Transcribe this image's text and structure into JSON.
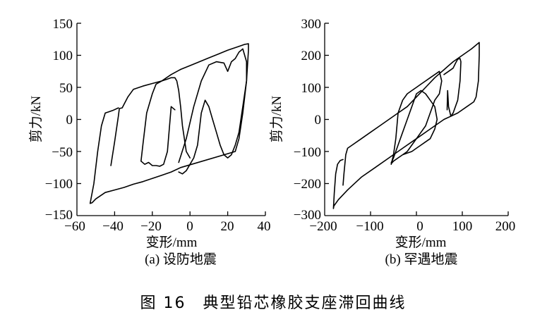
{
  "figure": {
    "caption": "图 16　典型铅芯橡胶支座滞回曲线"
  },
  "chart_data": [
    {
      "type": "line",
      "panel": "a",
      "title": "(a) 设防地震",
      "xlabel": "变形/mm",
      "ylabel": "剪力/kN",
      "xlim": [
        -60,
        40
      ],
      "ylim": [
        -150,
        150
      ],
      "xticks": [
        -60,
        -40,
        -20,
        0,
        20,
        40
      ],
      "xtick_labels": [
        "−60",
        "−40",
        "−20",
        "0",
        "20",
        "40"
      ],
      "yticks": [
        150,
        100,
        50,
        0,
        -50,
        -100,
        -150
      ],
      "ytick_labels": [
        "150",
        "100",
        "50",
        "0",
        "−50",
        "−100",
        "−150"
      ],
      "grid": false,
      "legend": null,
      "description": "Hysteresis loops of lead-rubber bearing under design-basis earthquake; max shear ≈ 118 kN at ≈ 31 mm, min ≈ −132 kN at ≈ −53 mm",
      "series": [
        {
          "name": "hysteresis",
          "x": [
            -42,
            -40,
            -38,
            -37.5,
            -36,
            -33,
            -30,
            -25,
            -20,
            -15,
            -10,
            -5,
            0,
            5,
            10,
            15,
            20,
            25,
            29,
            31,
            31,
            30,
            28,
            26,
            24,
            -5,
            -10,
            -15,
            -20,
            -25,
            -30,
            -35,
            -40,
            -45,
            -50,
            -52,
            -53,
            -51,
            -49,
            -47,
            -45,
            -43,
            -41,
            -38
          ],
          "y": [
            -72,
            -35,
            5,
            17,
            18,
            35,
            47,
            52,
            56,
            60,
            70,
            78,
            84,
            90,
            96,
            102,
            108,
            113,
            117,
            118,
            108,
            60,
            10,
            -30,
            -50,
            -75,
            -82,
            -87,
            -92,
            -97,
            -101,
            -106,
            -110,
            -114,
            -124,
            -130,
            -131,
            -100,
            -50,
            -10,
            10,
            12,
            14,
            18
          ]
        },
        {
          "name": "inner-loop-1",
          "x": [
            -26,
            -25,
            -23,
            -20,
            -18,
            -15,
            -12,
            -10,
            -8,
            -7,
            -6,
            -5,
            -4,
            -3,
            -2,
            0
          ],
          "y": [
            -65,
            -40,
            10,
            40,
            55,
            60,
            63,
            65,
            65,
            60,
            45,
            20,
            -10,
            -30,
            -50,
            -60
          ]
        },
        {
          "name": "inner-loop-2",
          "x": [
            -26,
            -24,
            -22,
            -20,
            -18,
            -16,
            -14,
            -12,
            -10,
            -8
          ],
          "y": [
            -65,
            -70,
            -67,
            -72,
            -72,
            -73,
            -70,
            -50,
            20,
            15
          ]
        },
        {
          "name": "dense-core",
          "x": [
            -6,
            -2,
            2,
            6,
            10,
            14,
            18,
            20,
            22,
            24,
            26,
            28,
            30,
            30,
            28,
            26,
            24,
            22,
            20,
            18,
            16,
            14,
            12,
            10,
            8,
            6,
            4,
            2,
            0,
            -2,
            -4,
            -6
          ],
          "y": [
            -67,
            -30,
            20,
            60,
            85,
            90,
            88,
            75,
            90,
            95,
            105,
            110,
            90,
            60,
            20,
            -20,
            -40,
            -55,
            -60,
            -55,
            -40,
            -20,
            0,
            20,
            30,
            10,
            -40,
            -60,
            -70,
            -80,
            -85,
            -82
          ]
        }
      ]
    },
    {
      "type": "line",
      "panel": "b",
      "title": "(b) 罕遇地震",
      "xlabel": "变形/mm",
      "ylabel": "剪力/kN",
      "xlim": [
        -200,
        200
      ],
      "ylim": [
        -300,
        300
      ],
      "xticks": [
        -200,
        -100,
        0,
        100,
        200
      ],
      "xtick_labels": [
        "−200",
        "−100",
        "0",
        "100",
        "200"
      ],
      "yticks": [
        300,
        200,
        100,
        0,
        -100,
        -200,
        -300
      ],
      "ytick_labels": [
        "300",
        "200",
        "100",
        "0",
        "−100",
        "−200",
        "−300"
      ],
      "grid": false,
      "legend": null,
      "description": "Hysteresis loops under rare (maximum considered) earthquake; max shear ≈ 240 kN at ≈ 137 mm, min ≈ −278 kN at ≈ −180 mm",
      "series": [
        {
          "name": "hysteresis",
          "x": [
            -160,
            -158,
            -156,
            -154,
            -150,
            -140,
            -120,
            -100,
            -80,
            -60,
            -40,
            -20,
            0,
            20,
            40,
            60,
            80,
            100,
            120,
            137,
            137,
            135,
            130,
            125,
            110,
            90,
            60,
            30,
            0,
            -30,
            -60,
            -90,
            -120,
            -150,
            -170,
            -180,
            -181,
            -179,
            -176,
            -172,
            -166,
            -160
          ],
          "y": [
            -205,
            -170,
            -140,
            -110,
            -90,
            -80,
            -60,
            -40,
            -20,
            0,
            20,
            40,
            70,
            100,
            130,
            155,
            180,
            200,
            220,
            240,
            200,
            120,
            70,
            55,
            40,
            20,
            0,
            -30,
            -60,
            -90,
            -120,
            -150,
            -180,
            -220,
            -250,
            -270,
            -278,
            -230,
            -170,
            -140,
            -128,
            -125
          ]
        },
        {
          "name": "mid-loop",
          "x": [
            60,
            70,
            80,
            85,
            90,
            95,
            97,
            95,
            90,
            80,
            75,
            70,
            68,
            67
          ],
          "y": [
            140,
            150,
            160,
            175,
            188,
            190,
            180,
            120,
            60,
            20,
            10,
            40,
            90,
            30
          ]
        },
        {
          "name": "dense-core",
          "x": [
            -55,
            -50,
            -45,
            -40,
            -30,
            -20,
            -10,
            0,
            10,
            20,
            30,
            40,
            50,
            55,
            50,
            40,
            30,
            20,
            10,
            0,
            -10,
            -20,
            -30,
            -40,
            -50,
            -55,
            -50,
            -40,
            -30,
            -20,
            -10,
            0,
            10,
            20,
            30,
            40,
            45,
            40,
            30,
            20,
            10,
            0,
            -10,
            -20,
            -30,
            -40,
            -50,
            -55
          ],
          "y": [
            -140,
            -110,
            -60,
            20,
            60,
            80,
            90,
            100,
            110,
            120,
            130,
            140,
            150,
            120,
            80,
            60,
            20,
            -20,
            -40,
            -60,
            -80,
            -100,
            -110,
            -120,
            -130,
            -135,
            -120,
            -80,
            -40,
            0,
            40,
            80,
            90,
            80,
            60,
            40,
            0,
            -30,
            -60,
            -70,
            -80,
            -90,
            -100,
            -105,
            -110,
            -120,
            -130,
            -138
          ]
        }
      ]
    }
  ]
}
